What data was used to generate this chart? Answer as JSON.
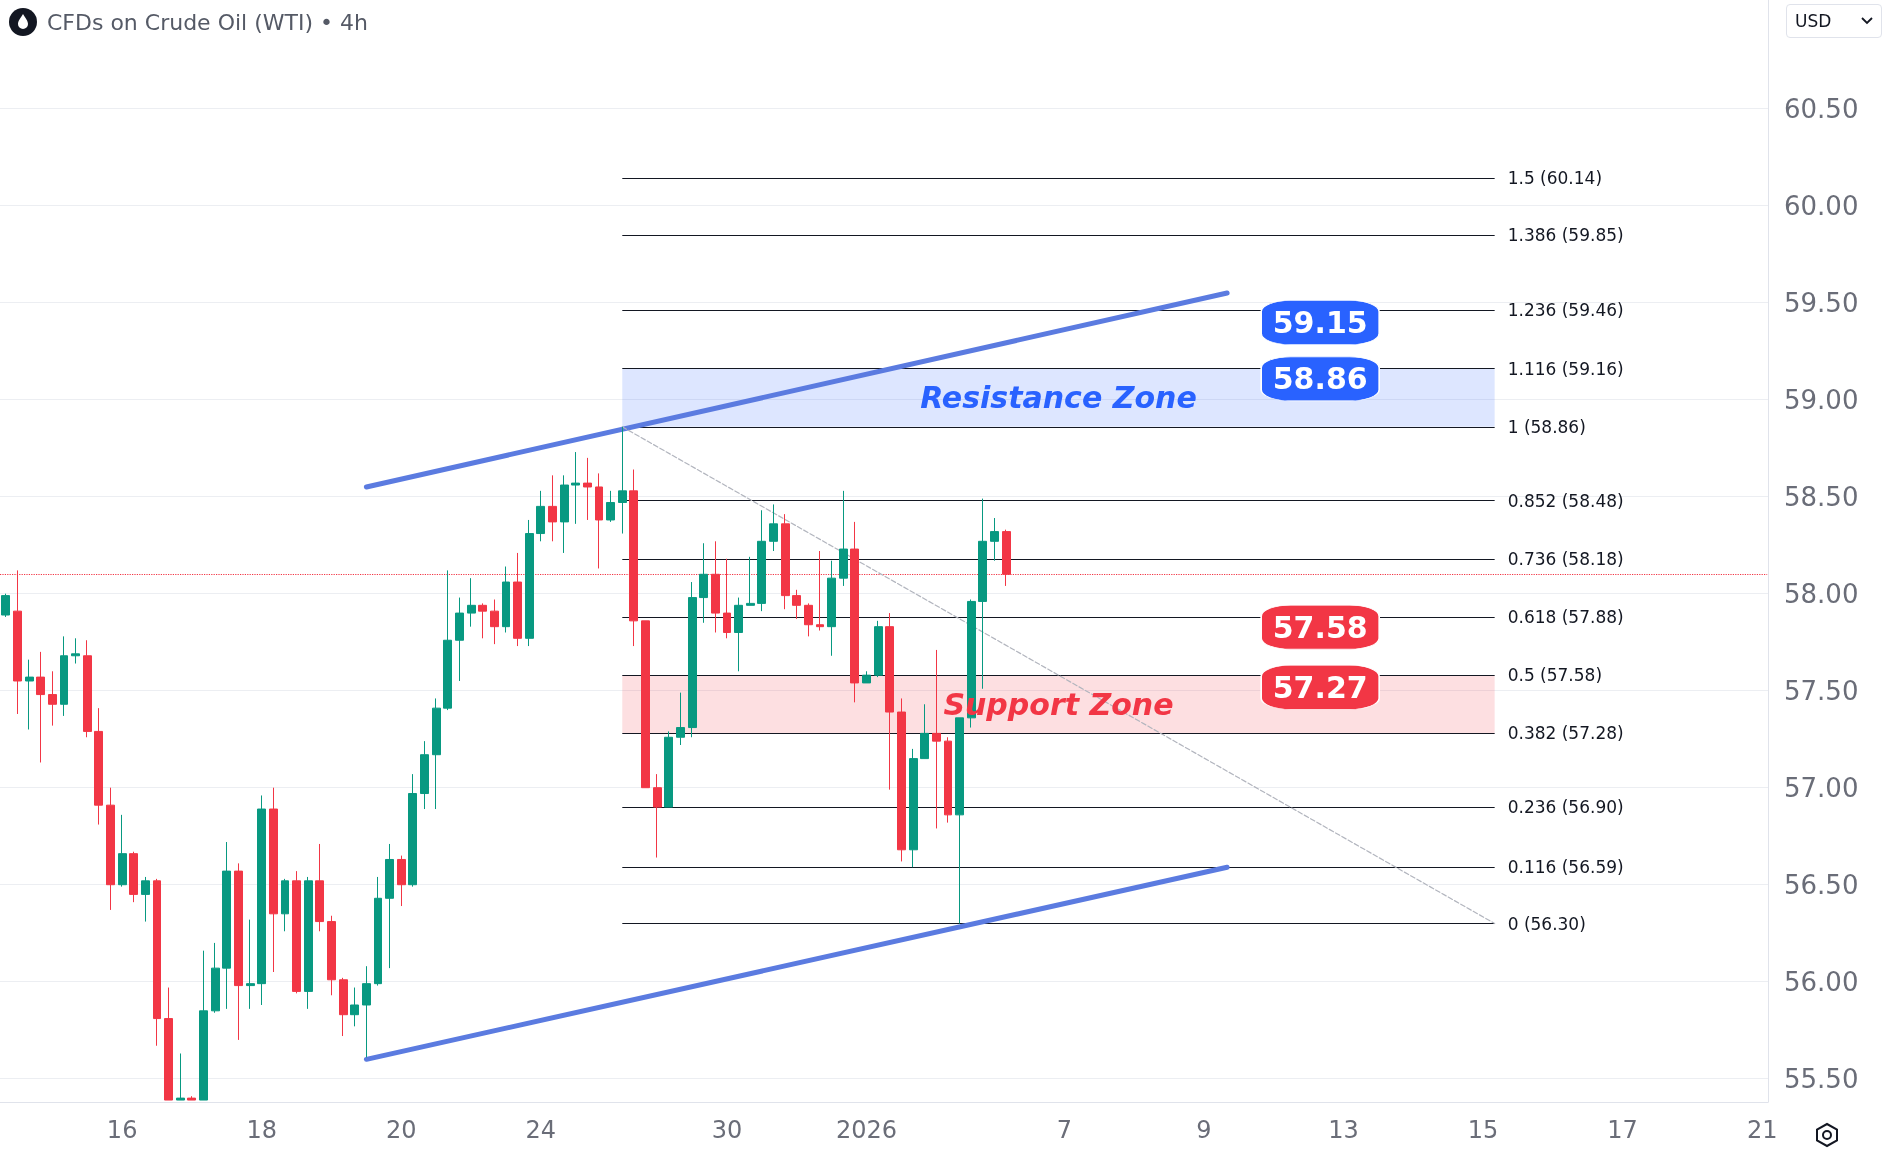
{
  "chart_data": {
    "type": "candlestick",
    "title": "CFDs on Crude Oil (WTI) • 4h",
    "categories": [
      null,
      null,
      null,
      null,
      null,
      null,
      null,
      null,
      null,
      null,
      "16",
      null,
      null,
      null,
      null,
      null,
      null,
      null,
      null,
      null,
      null,
      null,
      "18",
      null,
      null,
      null,
      null,
      null,
      null,
      null,
      null,
      null,
      null,
      null,
      "20",
      null,
      null,
      null,
      null,
      null,
      null,
      null,
      null,
      null,
      null,
      null,
      "24",
      null,
      null,
      null,
      null,
      null,
      null,
      null,
      null,
      null,
      null,
      null,
      null,
      null,
      null,
      null,
      "30",
      null,
      null,
      null,
      null,
      null,
      null,
      null,
      null,
      null,
      null,
      null,
      "2026",
      null,
      null,
      null,
      null,
      null,
      null,
      null,
      null,
      null,
      null,
      null,
      null,
      null,
      null,
      null,
      null,
      "7",
      null,
      null,
      null,
      null,
      null,
      null,
      null,
      null,
      null,
      null,
      null,
      "9",
      null,
      null,
      null,
      null,
      null,
      null,
      null,
      null,
      null,
      null,
      null,
      "13",
      null,
      null,
      null,
      null,
      null,
      null,
      null,
      null,
      null,
      null,
      null,
      "15",
      null,
      null,
      null,
      null,
      null,
      null,
      null,
      null,
      null,
      null,
      null,
      "17",
      null,
      null,
      null,
      null,
      null,
      null,
      null,
      null,
      null,
      null,
      null,
      "21"
    ],
    "ohlc": [
      [
        57.89,
        58.0,
        57.88,
        57.99
      ],
      [
        57.91,
        58.12,
        57.38,
        57.55
      ],
      [
        57.55,
        57.66,
        57.3,
        57.57
      ],
      [
        57.57,
        57.7,
        57.13,
        57.48
      ],
      [
        57.48,
        57.6,
        57.32,
        57.43
      ],
      [
        57.43,
        57.78,
        57.37,
        57.68
      ],
      [
        57.68,
        57.77,
        57.64,
        57.69
      ],
      [
        57.68,
        57.76,
        57.26,
        57.29
      ],
      [
        57.29,
        57.41,
        56.81,
        56.91
      ],
      [
        56.91,
        57.0,
        56.37,
        56.5
      ],
      [
        56.5,
        56.86,
        56.49,
        56.66
      ],
      [
        56.66,
        56.67,
        56.41,
        56.45
      ],
      [
        56.45,
        56.54,
        56.31,
        56.52
      ],
      [
        56.52,
        56.53,
        55.67,
        55.81
      ],
      [
        55.81,
        55.97,
        55.39,
        55.39
      ],
      [
        55.39,
        55.63,
        55.39,
        55.4
      ],
      [
        55.4,
        55.41,
        55.39,
        55.39
      ],
      [
        55.39,
        56.16,
        55.39,
        55.85
      ],
      [
        55.85,
        56.2,
        55.84,
        56.07
      ],
      [
        56.07,
        56.72,
        55.86,
        56.57
      ],
      [
        56.57,
        56.61,
        55.7,
        55.98
      ],
      [
        55.98,
        56.32,
        55.86,
        55.99
      ],
      [
        55.99,
        56.96,
        55.88,
        56.89
      ],
      [
        56.89,
        57.0,
        56.05,
        56.35
      ],
      [
        56.35,
        56.53,
        56.26,
        56.52
      ],
      [
        56.52,
        56.57,
        55.94,
        55.95
      ],
      [
        55.95,
        56.54,
        55.86,
        56.52
      ],
      [
        56.52,
        56.71,
        56.26,
        56.31
      ],
      [
        56.31,
        56.34,
        55.93,
        56.01
      ],
      [
        56.01,
        56.02,
        55.72,
        55.83
      ],
      [
        55.83,
        55.97,
        55.77,
        55.88
      ],
      [
        55.88,
        56.08,
        55.61,
        55.99
      ],
      [
        55.99,
        56.54,
        55.98,
        56.43
      ],
      [
        56.43,
        56.71,
        56.07,
        56.63
      ],
      [
        56.63,
        56.65,
        56.39,
        56.5
      ],
      [
        56.5,
        57.07,
        56.49,
        56.97
      ],
      [
        56.97,
        57.24,
        56.89,
        57.17
      ],
      [
        57.17,
        57.46,
        56.89,
        57.41
      ],
      [
        57.41,
        58.12,
        57.4,
        57.76
      ],
      [
        57.76,
        57.98,
        57.55,
        57.9
      ],
      [
        57.9,
        58.08,
        57.83,
        57.94
      ],
      [
        57.94,
        57.95,
        57.77,
        57.91
      ],
      [
        57.91,
        57.97,
        57.74,
        57.83
      ],
      [
        57.83,
        58.14,
        57.8,
        58.06
      ],
      [
        58.06,
        58.21,
        57.73,
        57.77
      ],
      [
        57.77,
        58.38,
        57.73,
        58.31
      ],
      [
        58.31,
        58.53,
        58.27,
        58.45
      ],
      [
        58.45,
        58.61,
        58.27,
        58.37
      ],
      [
        58.37,
        58.61,
        58.21,
        58.56
      ],
      [
        58.56,
        58.73,
        58.36,
        58.57
      ],
      [
        58.57,
        58.7,
        58.38,
        58.55
      ],
      [
        58.55,
        58.62,
        58.13,
        58.38
      ],
      [
        58.38,
        58.53,
        58.37,
        58.47
      ],
      [
        58.47,
        58.86,
        58.31,
        58.53
      ],
      [
        58.53,
        58.64,
        57.73,
        57.86
      ],
      [
        57.86,
        57.86,
        57.0,
        57.0
      ],
      [
        57.0,
        57.07,
        56.64,
        56.9
      ],
      [
        56.9,
        57.29,
        56.9,
        57.26
      ],
      [
        57.26,
        57.49,
        57.22,
        57.31
      ],
      [
        57.31,
        58.06,
        57.26,
        57.98
      ],
      [
        57.98,
        58.26,
        57.85,
        58.1
      ],
      [
        58.1,
        58.27,
        57.8,
        57.9
      ],
      [
        57.9,
        58.18,
        57.77,
        57.8
      ],
      [
        57.8,
        57.98,
        57.6,
        57.94
      ],
      [
        57.94,
        58.19,
        57.94,
        57.95
      ],
      [
        57.95,
        58.43,
        57.91,
        58.27
      ],
      [
        58.27,
        58.46,
        58.22,
        58.36
      ],
      [
        58.36,
        58.41,
        57.92,
        57.99
      ],
      [
        57.99,
        58.02,
        57.87,
        57.94
      ],
      [
        57.94,
        57.95,
        57.78,
        57.84
      ],
      [
        57.84,
        58.22,
        57.81,
        57.83
      ],
      [
        57.83,
        58.17,
        57.68,
        58.08
      ],
      [
        58.08,
        58.53,
        58.04,
        58.23
      ],
      [
        58.23,
        58.37,
        57.44,
        57.54
      ],
      [
        57.54,
        57.6,
        57.54,
        57.58
      ],
      [
        57.58,
        57.86,
        57.57,
        57.83
      ],
      [
        57.83,
        57.9,
        56.99,
        57.39
      ],
      [
        57.39,
        57.46,
        56.62,
        56.68
      ],
      [
        56.68,
        57.2,
        56.59,
        57.15
      ],
      [
        57.15,
        57.43,
        57.15,
        57.28
      ],
      [
        57.28,
        57.71,
        56.79,
        57.24
      ],
      [
        57.24,
        57.26,
        56.82,
        56.86
      ],
      [
        56.86,
        57.36,
        56.3,
        57.36
      ],
      [
        57.36,
        57.97,
        57.31,
        57.96
      ],
      [
        57.96,
        58.49,
        57.51,
        58.27
      ],
      [
        58.27,
        58.39,
        58.17,
        58.32
      ],
      [
        58.32,
        58.33,
        58.04,
        58.1
      ],
      null,
      null,
      null,
      null,
      null,
      null,
      null,
      null,
      null,
      null,
      null,
      null,
      null,
      null,
      null,
      null,
      null,
      null,
      null,
      null,
      null,
      null,
      null,
      null,
      null,
      null,
      null,
      null,
      null,
      null,
      null,
      null,
      null,
      null,
      null,
      null,
      null,
      null,
      null,
      null,
      null,
      null,
      null,
      null,
      null,
      null,
      null,
      null,
      null,
      null,
      null,
      null,
      null,
      null,
      null,
      null,
      null,
      null,
      null,
      null,
      null,
      null,
      null,
      null,
      null
    ],
    "series": [
      {
        "type": "line",
        "color": "#5b7be0",
        "values": [
          null,
          null,
          null,
          null,
          null,
          null,
          null,
          null,
          null,
          null,
          null,
          null,
          null,
          null,
          null,
          null,
          null,
          null,
          null,
          null,
          null,
          null,
          null,
          null,
          null,
          null,
          null,
          null,
          null,
          null,
          null,
          58.55,
          null,
          null,
          null,
          null,
          null,
          null,
          null,
          null,
          null,
          null,
          null,
          null,
          null,
          null,
          null,
          null,
          null,
          null,
          null,
          null,
          null,
          null,
          null,
          null,
          null,
          null,
          null,
          null,
          null,
          null,
          null,
          null,
          null,
          null,
          null,
          null,
          null,
          null,
          null,
          null,
          null,
          null,
          null,
          null,
          null,
          null,
          null,
          null,
          null,
          null,
          null,
          null,
          null,
          null,
          null,
          null,
          null,
          null,
          null,
          null,
          null,
          null,
          null,
          null,
          null,
          null,
          null,
          null,
          null,
          null,
          null,
          null,
          null,
          59.55,
          null,
          null,
          null,
          null,
          null,
          null,
          null,
          null,
          null,
          null,
          null,
          null,
          null,
          null,
          null,
          null,
          null,
          null,
          null,
          null,
          null,
          null,
          null,
          null,
          null,
          null,
          null,
          null,
          null,
          null,
          null,
          null,
          null,
          null,
          null,
          null,
          null,
          null,
          null,
          null,
          null,
          null,
          null,
          null,
          null,
          null
        ]
      },
      {
        "type": "line",
        "color": "#5b7be0",
        "values": [
          null,
          null,
          null,
          null,
          null,
          null,
          null,
          null,
          null,
          null,
          null,
          null,
          null,
          null,
          null,
          null,
          null,
          null,
          null,
          null,
          null,
          null,
          null,
          null,
          null,
          null,
          null,
          null,
          null,
          null,
          null,
          55.6,
          null,
          null,
          null,
          null,
          null,
          null,
          null,
          null,
          null,
          null,
          null,
          null,
          null,
          null,
          null,
          null,
          null,
          null,
          null,
          null,
          null,
          null,
          null,
          null,
          null,
          null,
          null,
          null,
          null,
          null,
          null,
          null,
          null,
          null,
          null,
          null,
          null,
          null,
          null,
          null,
          null,
          null,
          null,
          null,
          null,
          null,
          null,
          null,
          null,
          null,
          null,
          null,
          null,
          null,
          null,
          null,
          null,
          null,
          null,
          null,
          null,
          null,
          null,
          null,
          null,
          null,
          null,
          null,
          null,
          null,
          null,
          null,
          null,
          56.59,
          null,
          null,
          null,
          null,
          null,
          null,
          null,
          null,
          null,
          null,
          null,
          null,
          null,
          null,
          null,
          null,
          null,
          null,
          null,
          null,
          null,
          null,
          null,
          null,
          null,
          null,
          null,
          null,
          null,
          null,
          null,
          null,
          null,
          null,
          null,
          null,
          null,
          null,
          null,
          null,
          null,
          null,
          null,
          null,
          null,
          null
        ]
      },
      {
        "type": "line",
        "color": "#b2b5be",
        "line_style": "dashed",
        "values": [
          null,
          null,
          null,
          null,
          null,
          null,
          null,
          null,
          null,
          null,
          null,
          null,
          null,
          null,
          null,
          null,
          null,
          null,
          null,
          null,
          null,
          null,
          null,
          null,
          null,
          null,
          null,
          null,
          null,
          null,
          null,
          null,
          null,
          null,
          null,
          null,
          null,
          null,
          null,
          null,
          null,
          null,
          null,
          null,
          null,
          null,
          null,
          null,
          null,
          null,
          null,
          null,
          null,
          58.86,
          null,
          null,
          null,
          null,
          null,
          null,
          null,
          null,
          null,
          null,
          null,
          null,
          null,
          null,
          null,
          null,
          null,
          null,
          null,
          null,
          null,
          null,
          null,
          null,
          null,
          null,
          null,
          null,
          null,
          null,
          null,
          null,
          null,
          null,
          null,
          null,
          null,
          null,
          null,
          null,
          null,
          null,
          null,
          null,
          null,
          null,
          null,
          null,
          null,
          null,
          null,
          null,
          null,
          null,
          null,
          null,
          null,
          null,
          null,
          null,
          null,
          null,
          null,
          null,
          null,
          null,
          null,
          null,
          null,
          null,
          null,
          null,
          null,
          null,
          56.3,
          null,
          null,
          null,
          null,
          null,
          null,
          null,
          null,
          null,
          null,
          null,
          null,
          null,
          null,
          null,
          null,
          null,
          null,
          null,
          null,
          null,
          null,
          null
        ]
      }
    ],
    "ylim": [
      55.38,
      61.06
    ],
    "yticks": [
      {
        "value": 55.5,
        "label": "55.50"
      },
      {
        "value": 56,
        "label": "56.00"
      },
      {
        "value": 56.5,
        "label": "56.50"
      },
      {
        "value": 57,
        "label": "57.00"
      },
      {
        "value": 57.5,
        "label": "57.50"
      },
      {
        "value": 58,
        "label": "58.00"
      },
      {
        "value": 58.5,
        "label": "58.50"
      },
      {
        "value": 59,
        "label": "59.00"
      },
      {
        "value": 59.5,
        "label": "59.50"
      },
      {
        "value": 60,
        "label": "60.00"
      },
      {
        "value": 60.5,
        "label": "60.50"
      }
    ],
    "grid": "y",
    "ref_lines": [
      {
        "axis": "y",
        "value": 60.14,
        "label": "1.5 (60.14)"
      },
      {
        "axis": "y",
        "value": 59.85,
        "label": "1.386 (59.85)"
      },
      {
        "axis": "y",
        "value": 59.46,
        "label": "1.236 (59.46)"
      },
      {
        "axis": "y",
        "value": 59.16,
        "label": "1.116 (59.16)"
      },
      {
        "axis": "y",
        "value": 58.86,
        "label": "1 (58.86)"
      },
      {
        "axis": "y",
        "value": 58.48,
        "label": "0.852 (58.48)"
      },
      {
        "axis": "y",
        "value": 58.18,
        "label": "0.736 (58.18)"
      },
      {
        "axis": "y",
        "value": 57.88,
        "label": "0.618 (57.88)"
      },
      {
        "axis": "y",
        "value": 57.58,
        "label": "0.5 (57.58)"
      },
      {
        "axis": "y",
        "value": 57.28,
        "label": "0.382 (57.28)"
      },
      {
        "axis": "y",
        "value": 56.9,
        "label": "0.236 (56.90)"
      },
      {
        "axis": "y",
        "value": 56.59,
        "label": "0.116 (56.59)"
      },
      {
        "axis": "y",
        "value": 56.3,
        "label": "0 (56.30)"
      },
      {
        "axis": "y",
        "value": 58.1,
        "color": "#f23645",
        "line_style": "dotted"
      }
    ],
    "bands": [
      {
        "axis": "y",
        "from": 58.86,
        "to": 59.16,
        "label": "Resistance Zone",
        "color": "#2962ff"
      },
      {
        "axis": "y",
        "from": 57.28,
        "to": 57.58,
        "label": "Support Zone",
        "color": "#f23645"
      }
    ],
    "annotations": [
      "USD",
      {
        "text": "59.15",
        "y": 59.15
      },
      {
        "text": "58.86",
        "y": 58.86
      },
      {
        "text": "57.58",
        "y": 57.58
      },
      {
        "text": "57.27",
        "y": 57.27
      }
    ]
  }
}
